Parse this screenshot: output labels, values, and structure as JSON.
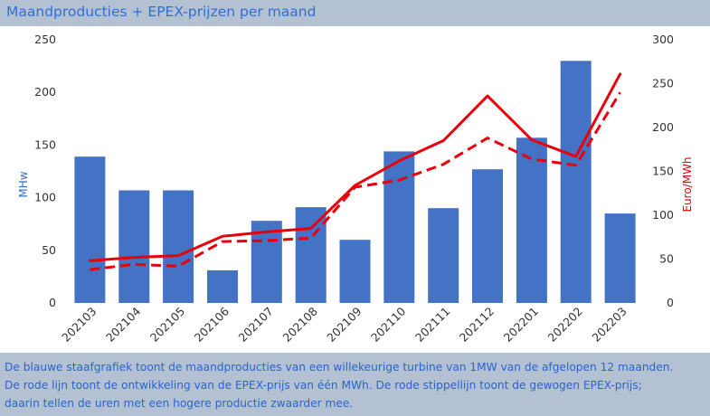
{
  "header": {
    "title": "Maandproducties + EPEX-prijzen per maand"
  },
  "chart_data": {
    "type": "bar",
    "categories": [
      "202103",
      "202104",
      "202105",
      "202106",
      "202107",
      "202108",
      "202109",
      "202110",
      "202111",
      "202112",
      "202201",
      "202202",
      "202203"
    ],
    "series": [
      {
        "name": "",
        "type": "bar",
        "axis": "left",
        "color": "#4472c4",
        "values": [
          139,
          107,
          107,
          31,
          78,
          91,
          60,
          144,
          90,
          127,
          157,
          230,
          85
        ]
      },
      {
        "name": "",
        "type": "line",
        "axis": "right",
        "color": "#e8000b",
        "dash": "solid",
        "values": [
          48,
          52,
          54,
          76,
          81,
          85,
          134,
          162,
          185,
          236,
          186,
          167,
          261
        ]
      },
      {
        "name": "",
        "type": "line",
        "axis": "right",
        "color": "#e8000b",
        "dash": "dashed",
        "values": [
          38,
          44,
          42,
          70,
          71,
          74,
          132,
          140,
          158,
          188,
          164,
          157,
          240
        ]
      }
    ],
    "y_left": {
      "label": "MHw",
      "ylim": [
        0,
        250
      ],
      "ticks": [
        0,
        50,
        100,
        150,
        200,
        250
      ],
      "color": "#2f6fd3"
    },
    "y_right": {
      "label": "Euro/MWh",
      "ylim": [
        0,
        300
      ],
      "ticks": [
        0,
        50,
        100,
        150,
        200,
        250,
        300
      ],
      "color": "#e8000b"
    },
    "grid": false
  },
  "caption": {
    "line1": "De blauwe staafgrafiek toont de maandproducties van een willekeurige turbine van 1MW van de afgelopen 12 maanden.",
    "line2": "De rode lijn toont de ontwikkeling van de EPEX-prijs van één MWh. De rode stippellijn toont de gewogen EPEX-prijs;",
    "line3": "daarin tellen de uren met een hogere productie zwaarder mee."
  }
}
